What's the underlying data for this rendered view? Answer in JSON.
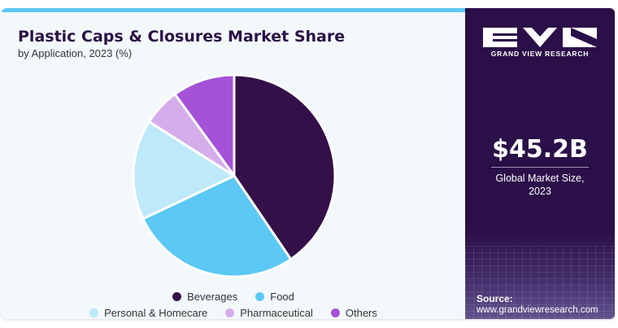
{
  "header": {
    "title": "Plastic Caps & Closures Market Share",
    "subtitle": "by Application, 2023 (%)"
  },
  "sidebar": {
    "brand": "GRAND VIEW RESEARCH",
    "market_value": "$45.2B",
    "market_caption_line1": "Global Market Size,",
    "market_caption_line2": "2023",
    "source_label": "Source:",
    "source_url": "www.grandviewresearch.com"
  },
  "colors": {
    "accent": "#5bc8f5",
    "sidebar_bg": "#2b0f48",
    "card_bg": "#f3f8fb"
  },
  "chart_data": {
    "type": "pie",
    "title": "Plastic Caps & Closures Market Share",
    "subtitle": "by Application, 2023 (%)",
    "categories": [
      "Beverages",
      "Food",
      "Personal & Homecare",
      "Pharmaceutical",
      "Others"
    ],
    "values": [
      40.5,
      27.5,
      16.0,
      6.0,
      10.0
    ],
    "colors": [
      "#341048",
      "#5bc8f5",
      "#bde9fa",
      "#d6adeb",
      "#a551d8"
    ],
    "legend_position": "bottom"
  }
}
